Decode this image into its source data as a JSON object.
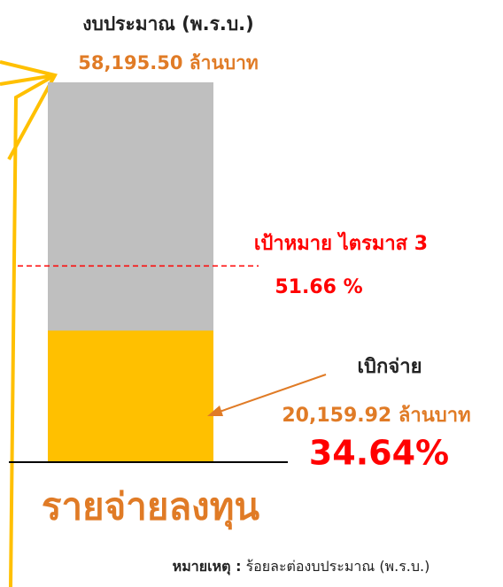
{
  "chart_data": {
    "type": "budget-bar",
    "title": "รายจ่ายลงทุน",
    "ylim": [
      0,
      100
    ],
    "budget": {
      "label": "งบประมาณ (พ.ร.บ.)",
      "value": 58195.5,
      "value_label": "58,195.50 ล้านบาท",
      "color": "#bfbfbf"
    },
    "disbursed": {
      "label": "เบิกจ่าย",
      "value": 20159.92,
      "value_label": "20,159.92 ล้านบาท",
      "percent": 34.64,
      "percent_label": "34.64%",
      "color": "#ffc000"
    },
    "target": {
      "label": "เป้าหมาย ไตรมาส 3",
      "value": 51.66,
      "value_label": "51.66 %",
      "color": "#ff0000"
    },
    "note": {
      "label": "หมายเหตุ :",
      "text": "ร้อยละต่องบประมาณ (พ.ร.บ.)"
    }
  }
}
